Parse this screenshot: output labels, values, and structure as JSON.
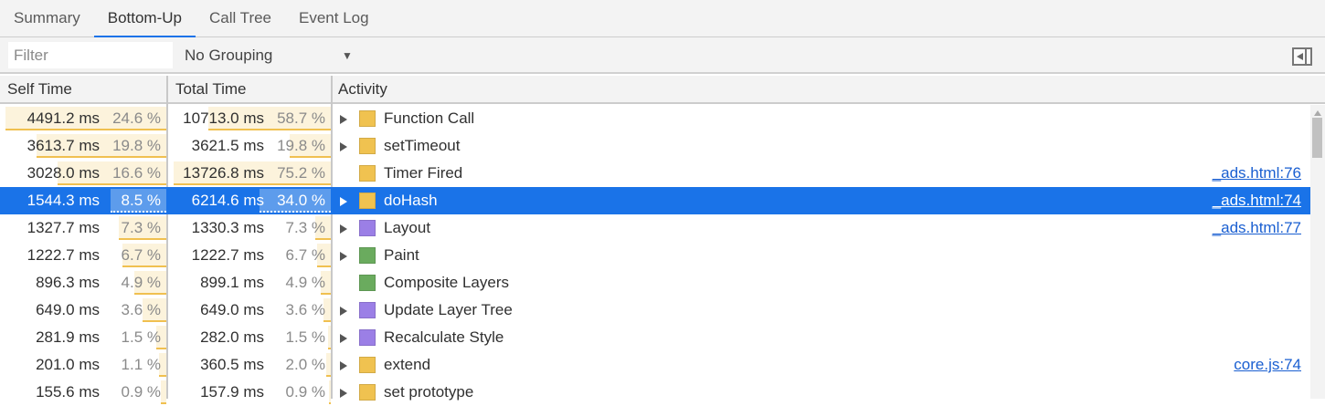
{
  "tabs": [
    {
      "label": "Summary",
      "active": false
    },
    {
      "label": "Bottom-Up",
      "active": true
    },
    {
      "label": "Call Tree",
      "active": false
    },
    {
      "label": "Event Log",
      "active": false
    }
  ],
  "toolbar": {
    "filter_placeholder": "Filter",
    "filter_value": "",
    "grouping": "No Grouping",
    "sidebar_toggle_icon": "sidebar-toggle-icon"
  },
  "columns": {
    "self": "Self Time",
    "total": "Total Time",
    "activity": "Activity"
  },
  "colors": {
    "scripting": "#f0c250",
    "rendering": "#9b7fe6",
    "painting": "#6aab5e",
    "selection": "#1a73e8",
    "link": "#1a5fd1"
  },
  "rows": [
    {
      "self_ms": "4491.2 ms",
      "self_pct": "24.6 %",
      "self_val": 24.6,
      "total_ms": "10713.0 ms",
      "total_pct": "58.7 %",
      "total_val": 58.7,
      "activity": "Function Call",
      "category": "scripting",
      "expandable": true,
      "link": ""
    },
    {
      "self_ms": "3613.7 ms",
      "self_pct": "19.8 %",
      "self_val": 19.8,
      "total_ms": "3621.5 ms",
      "total_pct": "19.8 %",
      "total_val": 19.8,
      "activity": "setTimeout",
      "category": "scripting",
      "expandable": true,
      "link": ""
    },
    {
      "self_ms": "3028.0 ms",
      "self_pct": "16.6 %",
      "self_val": 16.6,
      "total_ms": "13726.8 ms",
      "total_pct": "75.2 %",
      "total_val": 75.2,
      "activity": "Timer Fired",
      "category": "scripting",
      "expandable": false,
      "link": "_ads.html:76"
    },
    {
      "self_ms": "1544.3 ms",
      "self_pct": "8.5 %",
      "self_val": 8.5,
      "total_ms": "6214.6 ms",
      "total_pct": "34.0 %",
      "total_val": 34.0,
      "activity": "doHash",
      "category": "scripting",
      "expandable": true,
      "link": "_ads.html:74",
      "selected": true
    },
    {
      "self_ms": "1327.7 ms",
      "self_pct": "7.3 %",
      "self_val": 7.3,
      "total_ms": "1330.3 ms",
      "total_pct": "7.3 %",
      "total_val": 7.3,
      "activity": "Layout",
      "category": "rendering",
      "expandable": true,
      "link": "_ads.html:77"
    },
    {
      "self_ms": "1222.7 ms",
      "self_pct": "6.7 %",
      "self_val": 6.7,
      "total_ms": "1222.7 ms",
      "total_pct": "6.7 %",
      "total_val": 6.7,
      "activity": "Paint",
      "category": "painting",
      "expandable": true,
      "link": ""
    },
    {
      "self_ms": "896.3 ms",
      "self_pct": "4.9 %",
      "self_val": 4.9,
      "total_ms": "899.1 ms",
      "total_pct": "4.9 %",
      "total_val": 4.9,
      "activity": "Composite Layers",
      "category": "painting",
      "expandable": false,
      "link": ""
    },
    {
      "self_ms": "649.0 ms",
      "self_pct": "3.6 %",
      "self_val": 3.6,
      "total_ms": "649.0 ms",
      "total_pct": "3.6 %",
      "total_val": 3.6,
      "activity": "Update Layer Tree",
      "category": "rendering",
      "expandable": true,
      "link": ""
    },
    {
      "self_ms": "281.9 ms",
      "self_pct": "1.5 %",
      "self_val": 1.5,
      "total_ms": "282.0 ms",
      "total_pct": "1.5 %",
      "total_val": 1.5,
      "activity": "Recalculate Style",
      "category": "rendering",
      "expandable": true,
      "link": ""
    },
    {
      "self_ms": "201.0 ms",
      "self_pct": "1.1 %",
      "self_val": 1.1,
      "total_ms": "360.5 ms",
      "total_pct": "2.0 %",
      "total_val": 2.0,
      "activity": "extend",
      "category": "scripting",
      "expandable": true,
      "link": "core.js:74"
    },
    {
      "self_ms": "155.6 ms",
      "self_pct": "0.9 %",
      "self_val": 0.9,
      "total_ms": "157.9 ms",
      "total_pct": "0.9 %",
      "total_val": 0.9,
      "activity": "set prototype",
      "category": "scripting",
      "expandable": true,
      "link": ""
    }
  ]
}
